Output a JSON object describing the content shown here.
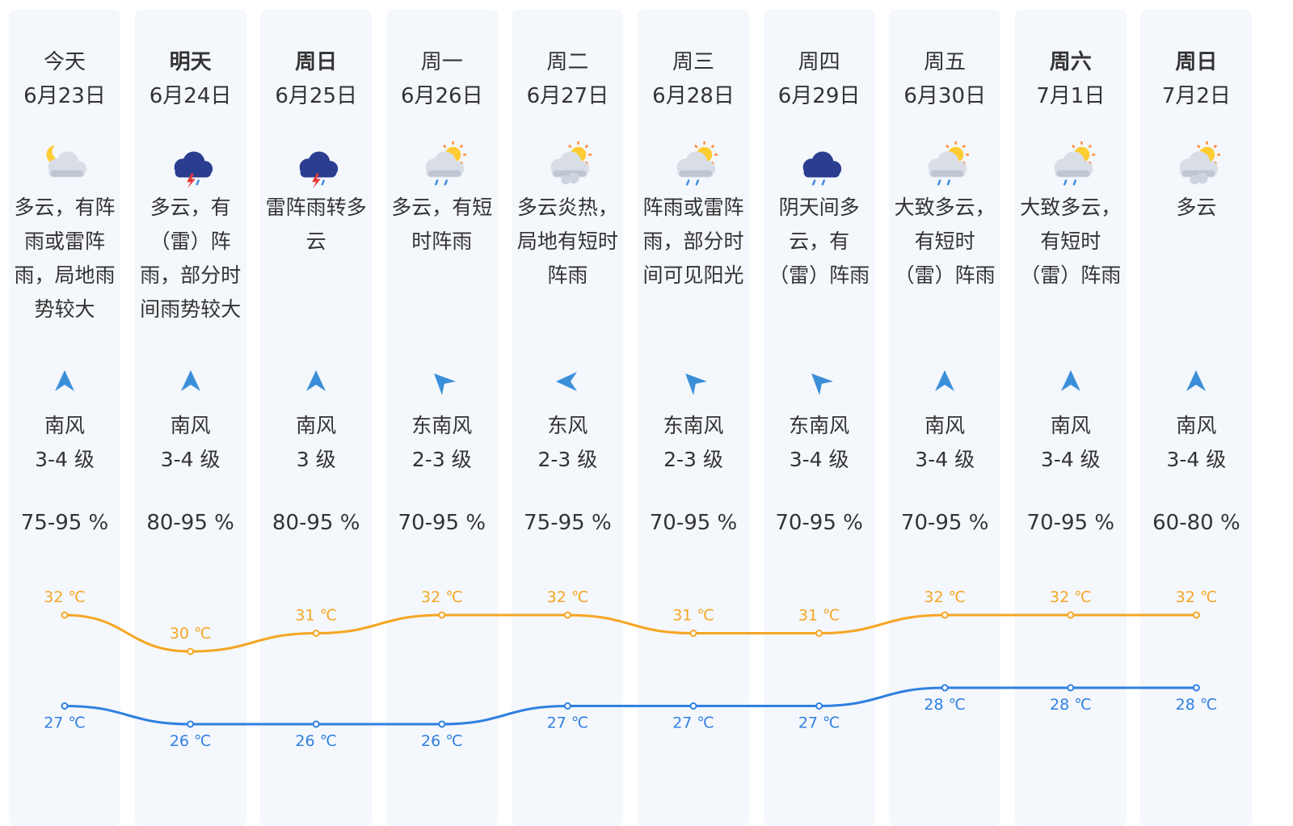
{
  "colors": {
    "high": "#f5a623",
    "low": "#2f80e0",
    "panel": "#f4f7fc"
  },
  "days": [
    {
      "dow": "今天",
      "bold": false,
      "date": "6月23日",
      "icon": "moon-cloud-icon",
      "desc": "多云，有阵雨或雷阵雨，局地雨势较大",
      "arrow": "north-arrow-icon",
      "rot": 0,
      "wind_dir": "南风",
      "wind_level": "3-4 级",
      "humidity": "75-95 %",
      "high": "32 ℃",
      "low": "27 ℃"
    },
    {
      "dow": "明天",
      "bold": true,
      "date": "6月24日",
      "icon": "thunderstorm-icon",
      "desc": "多云，有（雷）阵雨，部分时间雨势较大",
      "arrow": "north-arrow-icon",
      "rot": 0,
      "wind_dir": "南风",
      "wind_level": "3-4 级",
      "humidity": "80-95 %",
      "high": "30 ℃",
      "low": "26 ℃"
    },
    {
      "dow": "周日",
      "bold": true,
      "date": "6月25日",
      "icon": "thunderstorm-icon",
      "desc": "雷阵雨转多云",
      "arrow": "north-arrow-icon",
      "rot": 0,
      "wind_dir": "南风",
      "wind_level": "3 级",
      "humidity": "80-95 %",
      "high": "31 ℃",
      "low": "26 ℃"
    },
    {
      "dow": "周一",
      "bold": false,
      "date": "6月26日",
      "icon": "sun-cloud-rain-icon",
      "desc": "多云，有短时阵雨",
      "arrow": "northwest-arrow-icon",
      "rot": -45,
      "wind_dir": "东南风",
      "wind_level": "2-3 级",
      "humidity": "70-95 %",
      "high": "32 ℃",
      "low": "26 ℃"
    },
    {
      "dow": "周二",
      "bold": false,
      "date": "6月27日",
      "icon": "sun-cloud-icon",
      "desc": "多云炎热，局地有短时阵雨",
      "arrow": "west-arrow-icon",
      "rot": -90,
      "wind_dir": "东风",
      "wind_level": "2-3 级",
      "humidity": "75-95 %",
      "high": "32 ℃",
      "low": "27 ℃"
    },
    {
      "dow": "周三",
      "bold": false,
      "date": "6月28日",
      "icon": "sun-cloud-rain-icon",
      "desc": "阵雨或雷阵雨，部分时间可见阳光",
      "arrow": "northwest-arrow-icon",
      "rot": -45,
      "wind_dir": "东南风",
      "wind_level": "2-3 级",
      "humidity": "70-95 %",
      "high": "31 ℃",
      "low": "27 ℃"
    },
    {
      "dow": "周四",
      "bold": false,
      "date": "6月29日",
      "icon": "rain-cloud-icon",
      "desc": "阴天间多云，有（雷）阵雨",
      "arrow": "northwest-arrow-icon",
      "rot": -45,
      "wind_dir": "东南风",
      "wind_level": "3-4 级",
      "humidity": "70-95 %",
      "high": "31 ℃",
      "low": "27 ℃"
    },
    {
      "dow": "周五",
      "bold": false,
      "date": "6月30日",
      "icon": "sun-cloud-rain-icon",
      "desc": "大致多云，有短时（雷）阵雨",
      "arrow": "north-arrow-icon",
      "rot": 0,
      "wind_dir": "南风",
      "wind_level": "3-4 级",
      "humidity": "70-95 %",
      "high": "32 ℃",
      "low": "28 ℃"
    },
    {
      "dow": "周六",
      "bold": true,
      "date": "7月1日",
      "icon": "sun-cloud-rain-icon",
      "desc": "大致多云，有短时（雷）阵雨",
      "arrow": "north-arrow-icon",
      "rot": 0,
      "wind_dir": "南风",
      "wind_level": "3-4 级",
      "humidity": "70-95 %",
      "high": "32 ℃",
      "low": "28 ℃"
    },
    {
      "dow": "周日",
      "bold": true,
      "date": "7月2日",
      "icon": "sun-cloud-icon",
      "desc": "多云",
      "arrow": "north-arrow-icon",
      "rot": 0,
      "wind_dir": "南风",
      "wind_level": "3-4 级",
      "humidity": "60-80 %",
      "high": "32 ℃",
      "low": "28 ℃"
    }
  ],
  "chart_data": {
    "type": "line",
    "categories": [
      "6月23日",
      "6月24日",
      "6月25日",
      "6月26日",
      "6月27日",
      "6月28日",
      "6月29日",
      "6月30日",
      "7月1日",
      "7月2日"
    ],
    "series": [
      {
        "values": [
          32,
          30,
          31,
          32,
          32,
          31,
          31,
          32,
          32,
          32
        ]
      },
      {
        "values": [
          27,
          26,
          26,
          26,
          27,
          27,
          27,
          28,
          28,
          28
        ]
      }
    ]
  }
}
